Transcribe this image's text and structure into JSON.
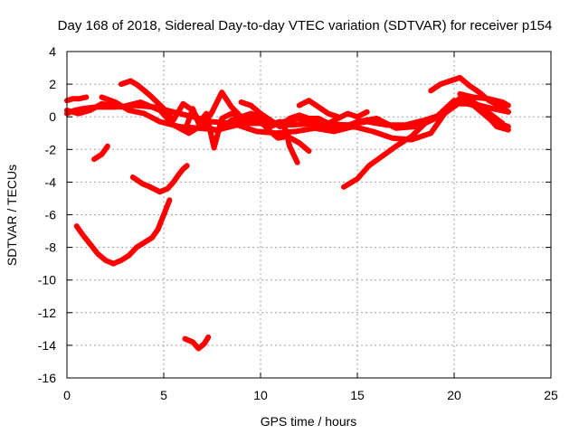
{
  "chart_data": {
    "type": "line",
    "title": "Day 168 of 2018, Sidereal Day-to-day VTEC variation (SDTVAR) for receiver p154",
    "xlabel": "GPS time / hours",
    "ylabel": "SDTVAR / TECUs",
    "xlim": [
      0,
      25
    ],
    "ylim": [
      -16,
      4
    ],
    "xticks": [
      0,
      5,
      10,
      15,
      20,
      25
    ],
    "yticks": [
      4,
      2,
      0,
      -2,
      -4,
      -6,
      -8,
      -10,
      -12,
      -14,
      -16
    ],
    "grid": true,
    "series_color": "#ff0000",
    "series": [
      {
        "name": "s1",
        "points": [
          [
            0.0,
            1.0
          ],
          [
            0.3,
            1.1
          ],
          [
            0.6,
            1.1
          ],
          [
            1.0,
            1.2
          ]
        ]
      },
      {
        "name": "s2",
        "points": [
          [
            0.0,
            0.2
          ],
          [
            0.4,
            0.4
          ],
          [
            0.8,
            0.5
          ],
          [
            1.5,
            0.6
          ],
          [
            2.5,
            0.6
          ],
          [
            3.5,
            0.7
          ],
          [
            4.5,
            0.6
          ],
          [
            5.5,
            0.3
          ],
          [
            6.5,
            0.0
          ],
          [
            7.5,
            -0.3
          ],
          [
            8.5,
            -0.4
          ],
          [
            10.0,
            -0.4
          ],
          [
            11.5,
            -0.5
          ],
          [
            13.0,
            -0.4
          ],
          [
            14.5,
            -0.5
          ],
          [
            15.5,
            -0.3
          ],
          [
            16.5,
            -0.5
          ],
          [
            17.5,
            -0.5
          ],
          [
            18.5,
            -0.2
          ],
          [
            19.5,
            0.2
          ],
          [
            20.2,
            0.8
          ],
          [
            21.0,
            0.8
          ],
          [
            22.0,
            0.5
          ],
          [
            22.8,
            0.3
          ]
        ]
      },
      {
        "name": "s3",
        "points": [
          [
            0.0,
            0.4
          ],
          [
            0.6,
            0.2
          ],
          [
            1.2,
            0.4
          ],
          [
            1.8,
            0.8
          ],
          [
            2.8,
            0.6
          ],
          [
            3.8,
            0.9
          ],
          [
            4.8,
            0.4
          ],
          [
            5.5,
            -0.5
          ],
          [
            6.3,
            -1.0
          ],
          [
            7.0,
            -0.5
          ],
          [
            7.8,
            -0.9
          ],
          [
            8.5,
            -0.2
          ],
          [
            9.5,
            -0.2
          ],
          [
            10.5,
            -0.6
          ],
          [
            11.2,
            -0.3
          ],
          [
            12.0,
            -0.1
          ],
          [
            13.0,
            -0.6
          ],
          [
            14.0,
            -0.8
          ],
          [
            15.0,
            -0.3
          ],
          [
            16.0,
            -0.1
          ],
          [
            17.0,
            -0.7
          ],
          [
            18.0,
            -0.6
          ],
          [
            19.0,
            -0.1
          ],
          [
            20.0,
            1.0
          ],
          [
            21.0,
            0.7
          ],
          [
            22.0,
            -0.3
          ],
          [
            22.8,
            -0.6
          ]
        ]
      },
      {
        "name": "s4",
        "points": [
          [
            1.8,
            1.2
          ],
          [
            2.5,
            0.9
          ],
          [
            3.2,
            0.4
          ],
          [
            4.0,
            0.2
          ],
          [
            4.8,
            -0.3
          ],
          [
            5.8,
            -0.6
          ],
          [
            6.8,
            -0.7
          ],
          [
            7.8,
            -0.8
          ],
          [
            8.8,
            -0.5
          ],
          [
            9.8,
            -0.9
          ],
          [
            10.8,
            -1.0
          ],
          [
            11.8,
            -0.9
          ],
          [
            12.8,
            -0.7
          ],
          [
            13.8,
            -0.9
          ],
          [
            14.8,
            -0.6
          ],
          [
            15.8,
            -0.9
          ],
          [
            16.8,
            -1.3
          ],
          [
            17.8,
            -1.4
          ],
          [
            18.8,
            -1.0
          ],
          [
            19.8,
            0.7
          ],
          [
            20.5,
            1.3
          ],
          [
            21.5,
            0.5
          ],
          [
            22.5,
            -0.4
          ]
        ]
      },
      {
        "name": "s5",
        "points": [
          [
            2.8,
            2.0
          ],
          [
            3.3,
            2.2
          ],
          [
            3.7,
            1.9
          ],
          [
            4.3,
            1.3
          ],
          [
            5.0,
            0.5
          ],
          [
            5.5,
            -0.2
          ],
          [
            6.0,
            0.8
          ],
          [
            6.5,
            0.4
          ],
          [
            7.0,
            -0.6
          ],
          [
            7.5,
            0.3
          ],
          [
            8.0,
            1.5
          ],
          [
            8.5,
            0.6
          ],
          [
            9.0,
            0.0
          ],
          [
            9.5,
            0.2
          ],
          [
            10.0,
            0.0
          ],
          [
            10.5,
            -0.5
          ],
          [
            11.0,
            -0.3
          ],
          [
            11.3,
            -0.8
          ],
          [
            11.5,
            -1.8
          ],
          [
            11.9,
            -2.8
          ]
        ]
      },
      {
        "name": "s6",
        "points": [
          [
            6.2,
            -0.5
          ],
          [
            6.5,
            0.5
          ],
          [
            6.8,
            -0.4
          ],
          [
            7.2,
            0.2
          ],
          [
            7.6,
            -1.9
          ],
          [
            8.0,
            -0.1
          ],
          [
            8.5,
            0.2
          ],
          [
            9.3,
            -0.2
          ],
          [
            9.8,
            0.0
          ],
          [
            10.4,
            -0.8
          ],
          [
            10.9,
            -1.3
          ],
          [
            11.4,
            -1.2
          ],
          [
            12.0,
            -1.6
          ],
          [
            12.5,
            -2.1
          ]
        ]
      },
      {
        "name": "s7",
        "points": [
          [
            9.0,
            0.9
          ],
          [
            9.5,
            0.7
          ],
          [
            10.0,
            0.2
          ],
          [
            11.0,
            -0.6
          ],
          [
            11.5,
            -0.1
          ],
          [
            12.0,
            0.1
          ],
          [
            12.5,
            -0.1
          ],
          [
            13.0,
            -0.1
          ],
          [
            13.5,
            -0.4
          ],
          [
            14.0,
            -0.1
          ],
          [
            14.5,
            0.2
          ],
          [
            15.0,
            0.0
          ],
          [
            15.5,
            0.3
          ]
        ]
      },
      {
        "name": "s8",
        "points": [
          [
            12.0,
            0.7
          ],
          [
            12.5,
            1.0
          ],
          [
            13.0,
            0.6
          ],
          [
            13.5,
            0.2
          ],
          [
            14.0,
            0.0
          ]
        ]
      },
      {
        "name": "s9",
        "points": [
          [
            14.3,
            -4.3
          ],
          [
            15.0,
            -3.8
          ],
          [
            15.6,
            -3.0
          ],
          [
            16.3,
            -2.4
          ],
          [
            17.0,
            -1.8
          ],
          [
            17.8,
            -1.2
          ],
          [
            18.5,
            -0.4
          ],
          [
            19.2,
            0.0
          ],
          [
            19.8,
            0.7
          ],
          [
            20.3,
            1.0
          ],
          [
            21.0,
            0.9
          ],
          [
            21.6,
            0.2
          ],
          [
            22.2,
            -0.6
          ],
          [
            22.8,
            -0.8
          ]
        ]
      },
      {
        "name": "s10",
        "points": [
          [
            18.8,
            1.6
          ],
          [
            19.3,
            2.0
          ],
          [
            19.8,
            2.2
          ],
          [
            20.3,
            2.4
          ],
          [
            20.8,
            1.9
          ],
          [
            21.3,
            1.5
          ],
          [
            21.8,
            1.0
          ],
          [
            22.3,
            0.7
          ],
          [
            22.8,
            0.3
          ]
        ]
      },
      {
        "name": "s11",
        "points": [
          [
            20.3,
            1.4
          ],
          [
            21.0,
            1.2
          ],
          [
            21.8,
            1.1
          ],
          [
            22.5,
            0.9
          ],
          [
            22.8,
            0.7
          ]
        ]
      },
      {
        "name": "s12",
        "points": [
          [
            1.4,
            -2.6
          ],
          [
            1.8,
            -2.3
          ],
          [
            2.1,
            -1.8
          ]
        ]
      },
      {
        "name": "s13",
        "points": [
          [
            3.4,
            -3.7
          ],
          [
            3.9,
            -4.1
          ],
          [
            4.3,
            -4.3
          ],
          [
            4.8,
            -4.6
          ],
          [
            5.2,
            -4.4
          ],
          [
            5.5,
            -4.0
          ],
          [
            5.8,
            -3.5
          ],
          [
            6.0,
            -3.2
          ],
          [
            6.2,
            -3.0
          ]
        ]
      },
      {
        "name": "s14",
        "points": [
          [
            0.5,
            -6.7
          ],
          [
            0.8,
            -7.2
          ],
          [
            1.2,
            -7.8
          ],
          [
            1.6,
            -8.4
          ],
          [
            2.0,
            -8.8
          ],
          [
            2.4,
            -9.0
          ],
          [
            2.8,
            -8.8
          ],
          [
            3.2,
            -8.5
          ],
          [
            3.6,
            -8.0
          ],
          [
            4.0,
            -7.7
          ],
          [
            4.4,
            -7.4
          ],
          [
            4.7,
            -6.9
          ],
          [
            5.0,
            -6.0
          ],
          [
            5.3,
            -5.1
          ]
        ]
      },
      {
        "name": "s15",
        "points": [
          [
            6.1,
            -13.6
          ],
          [
            6.5,
            -13.8
          ],
          [
            6.8,
            -14.2
          ],
          [
            7.1,
            -13.9
          ],
          [
            7.3,
            -13.5
          ]
        ]
      }
    ]
  }
}
